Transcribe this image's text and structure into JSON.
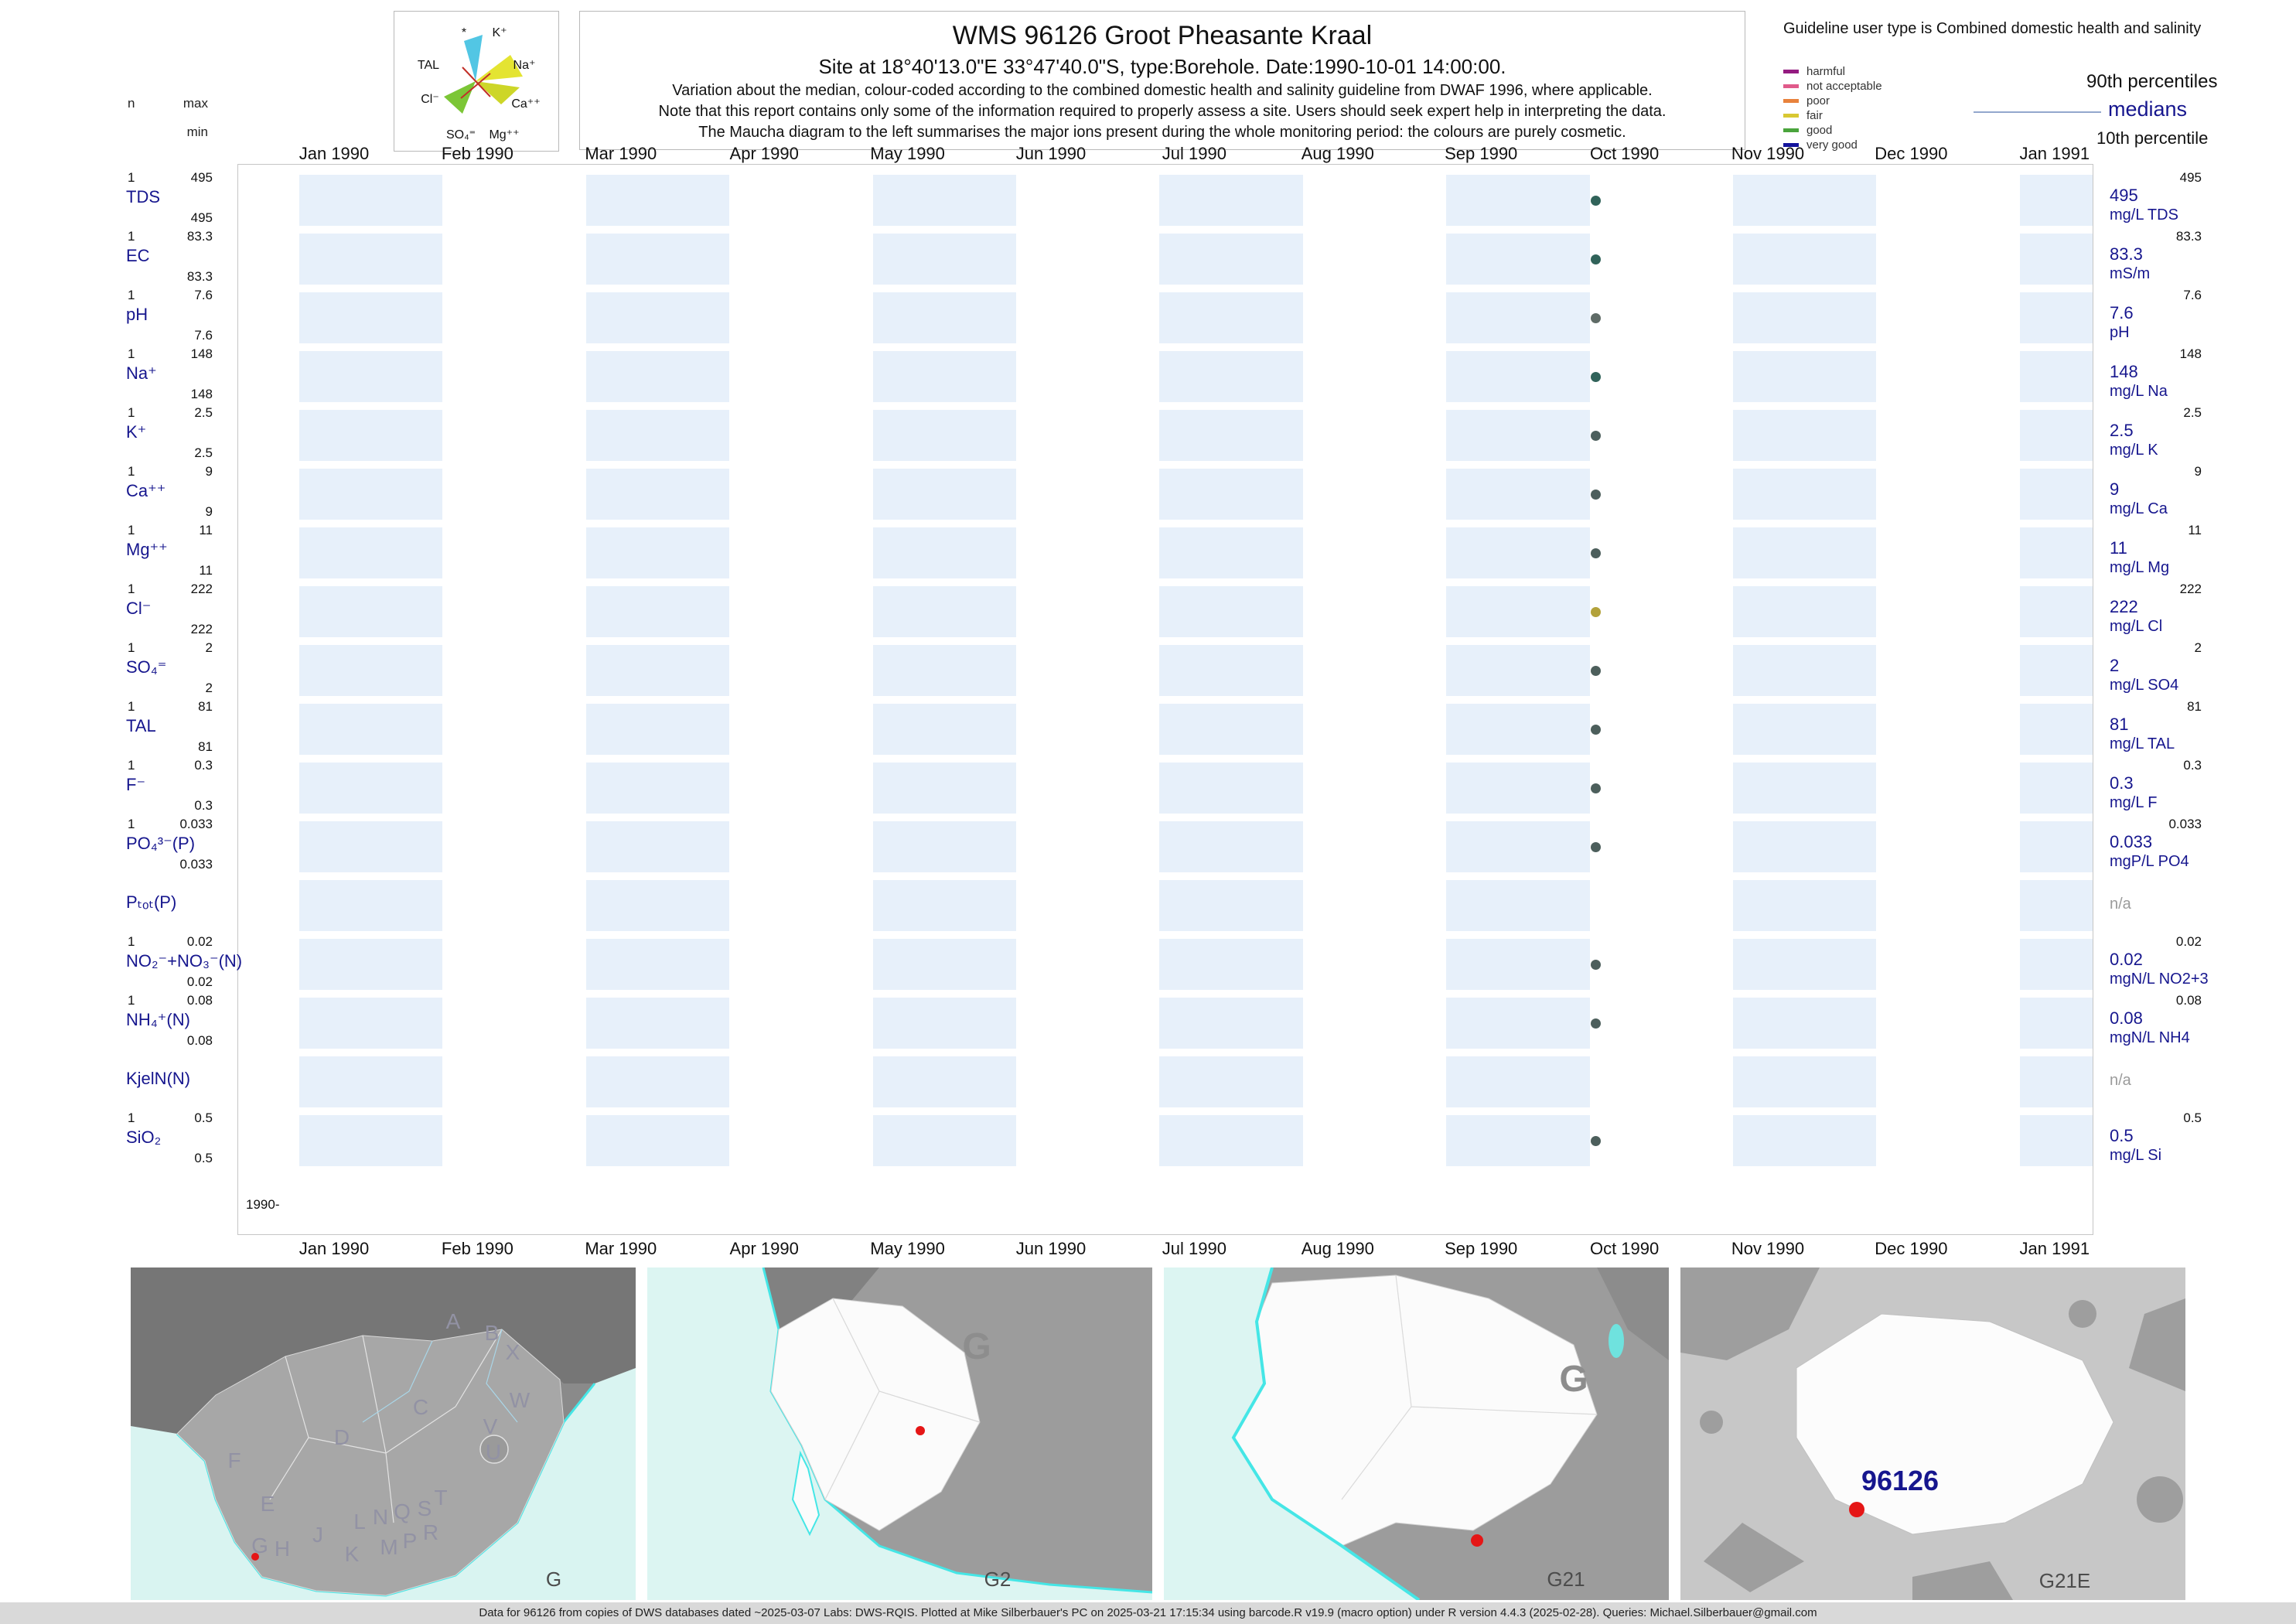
{
  "header": {
    "title": "WMS 96126  Groot Pheasante Kraal",
    "subtitle": "Site at 18°40'13.0\"E 33°47'40.0\"S, type:Borehole. Date:1990-10-01 14:00:00.",
    "note1": "Variation about the median,  colour-coded according to the combined domestic health and salinity guideline from DWAF 1996, where applicable.",
    "note2": "Note that this report contains only some of the information required to properly assess a site. Users should seek expert help in interpreting the data.",
    "note3": "The Maucha diagram to the left summarises the major ions present during the whole monitoring period: the colours are purely cosmetic."
  },
  "legend": {
    "title": "Guideline user type is Combined domestic health and salinity",
    "classes": [
      {
        "label": "harmful",
        "color": "#941b80"
      },
      {
        "label": "not acceptable",
        "color": "#e05a8a"
      },
      {
        "label": "poor",
        "color": "#e8823c"
      },
      {
        "label": "fair",
        "color": "#d8c832"
      },
      {
        "label": "good",
        "color": "#4aa43c"
      },
      {
        "label": "very good",
        "color": "#14149c"
      }
    ],
    "p90": "90th percentiles",
    "medians": "medians",
    "p10": "10th percentile"
  },
  "stats_header": {
    "n": "n",
    "max": "max",
    "min": "min"
  },
  "maucha": {
    "labels": [
      "*",
      "K⁺",
      "TAL",
      "Na⁺",
      "Cl⁻",
      "Ca⁺⁺",
      "SO₄⁼",
      "Mg⁺⁺"
    ]
  },
  "chart_data": {
    "type": "scatter",
    "title": "WMS 96126 Groot Pheasante Kraal",
    "x_axis": {
      "ticks": [
        "Jan 1990",
        "Feb 1990",
        "Mar 1990",
        "Apr 1990",
        "May 1990",
        "Jun 1990",
        "Jul 1990",
        "Aug 1990",
        "Sep 1990",
        "Oct 1990",
        "Nov 1990",
        "Dec 1990",
        "Jan 1991"
      ],
      "range": [
        "1990-01",
        "1991-01"
      ]
    },
    "origin_label": "1990-",
    "sample_date": "1990-10-01 14:00:00",
    "rows": [
      {
        "param": "TDS",
        "n": "1",
        "max": "495",
        "min": "495",
        "p90": "495",
        "median": "495",
        "unit": "mg/L TDS",
        "value": 495,
        "dot_color": "#31635a",
        "has_data": true
      },
      {
        "param": "EC",
        "n": "1",
        "max": "83.3",
        "min": "83.3",
        "p90": "83.3",
        "median": "83.3",
        "unit": "mS/m",
        "value": 83.3,
        "dot_color": "#31635a",
        "has_data": true
      },
      {
        "param": "pH",
        "n": "1",
        "max": "7.6",
        "min": "7.6",
        "p90": "7.6",
        "median": "7.6",
        "unit": "pH",
        "value": 7.6,
        "dot_color": "#5f6b66",
        "has_data": true
      },
      {
        "param": "Na⁺",
        "n": "1",
        "max": "148",
        "min": "148",
        "p90": "148",
        "median": "148",
        "unit": "mg/L Na",
        "value": 148,
        "dot_color": "#31635a",
        "has_data": true
      },
      {
        "param": "K⁺",
        "n": "1",
        "max": "2.5",
        "min": "2.5",
        "p90": "2.5",
        "median": "2.5",
        "unit": "mg/L K",
        "value": 2.5,
        "dot_color": "#4d5f5c",
        "has_data": true
      },
      {
        "param": "Ca⁺⁺",
        "n": "1",
        "max": "9",
        "min": "9",
        "p90": "9",
        "median": "9",
        "unit": "mg/L Ca",
        "value": 9,
        "dot_color": "#4d5f5c",
        "has_data": true
      },
      {
        "param": "Mg⁺⁺",
        "n": "1",
        "max": "11",
        "min": "11",
        "p90": "11",
        "median": "11",
        "unit": "mg/L Mg",
        "value": 11,
        "dot_color": "#4d5f5c",
        "has_data": true
      },
      {
        "param": "Cl⁻",
        "n": "1",
        "max": "222",
        "min": "222",
        "p90": "222",
        "median": "222",
        "unit": "mg/L Cl",
        "value": 222,
        "dot_color": "#b3a23a",
        "has_data": true
      },
      {
        "param": "SO₄⁼",
        "n": "1",
        "max": "2",
        "min": "2",
        "p90": "2",
        "median": "2",
        "unit": "mg/L SO4",
        "value": 2,
        "dot_color": "#4d5f5c",
        "has_data": true
      },
      {
        "param": "TAL",
        "n": "1",
        "max": "81",
        "min": "81",
        "p90": "81",
        "median": "81",
        "unit": "mg/L TAL",
        "value": 81,
        "dot_color": "#4d5f5c",
        "has_data": true
      },
      {
        "param": "F⁻",
        "n": "1",
        "max": "0.3",
        "min": "0.3",
        "p90": "0.3",
        "median": "0.3",
        "unit": "mg/L F",
        "value": 0.3,
        "dot_color": "#4d5f5c",
        "has_data": true
      },
      {
        "param": "PO₄³⁻(P)",
        "n": "1",
        "max": "0.033",
        "min": "0.033",
        "p90": "0.033",
        "median": "0.033",
        "unit": "mgP/L PO4",
        "value": 0.033,
        "dot_color": "#4d5f5c",
        "has_data": true
      },
      {
        "param": "Pₜₒₜ(P)",
        "na_label": "n/a",
        "has_data": false
      },
      {
        "param": "NO₂⁻+NO₃⁻(N)",
        "n": "1",
        "max": "0.02",
        "min": "0.02",
        "p90": "0.02",
        "median": "0.02",
        "unit": "mgN/L NO2+3",
        "value": 0.02,
        "dot_color": "#4d5f5c",
        "has_data": true
      },
      {
        "param": "NH₄⁺(N)",
        "n": "1",
        "max": "0.08",
        "min": "0.08",
        "p90": "0.08",
        "median": "0.08",
        "unit": "mgN/L NH4",
        "value": 0.08,
        "dot_color": "#4d5f5c",
        "has_data": true
      },
      {
        "param": "KjelN(N)",
        "na_label": "n/a",
        "has_data": false
      },
      {
        "param": "SiO₂",
        "n": "1",
        "max": "0.5",
        "min": "0.5",
        "p90": "0.5",
        "median": "0.5",
        "unit": "mg/L Si",
        "value": 0.5,
        "dot_color": "#4d5f5c",
        "has_data": true
      }
    ]
  },
  "maps": {
    "panels": [
      {
        "label": "G",
        "letters": [
          "A",
          "B",
          "X",
          "W",
          "C",
          "V",
          "U",
          "D",
          "F",
          "E",
          "L",
          "N",
          "Q",
          "S",
          "T",
          "R",
          "G",
          "H",
          "J",
          "K",
          "M",
          "P"
        ]
      },
      {
        "label": "G2",
        "region_letter": "G"
      },
      {
        "label": "G21",
        "region_letter": "G"
      },
      {
        "label": "G21E",
        "site_label": "96126"
      }
    ]
  },
  "footer": {
    "text": "Data for 96126 from copies of DWS databases dated ~2025-03-07 Labs: DWS-RQIS. Plotted at Mike Silberbauer's PC on 2025-03-21 17:15:34 using barcode.R v19.9 (macro option) under R version 4.4.3 (2025-02-28). Queries: Michael.Silberbauer@gmail.com"
  }
}
